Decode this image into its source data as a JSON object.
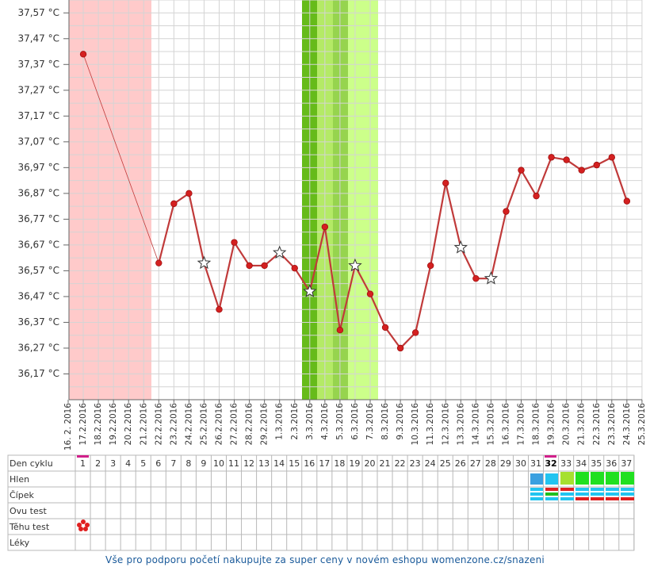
{
  "chart_data": {
    "type": "line",
    "x": [
      "16. 2. 2016",
      "17.2.2016",
      "18.2.2016",
      "19.2.2016",
      "20.2.2016",
      "21.2.2016",
      "22.2.2016",
      "23.2.2016",
      "24.2.2016",
      "25.2.2016",
      "26.2.2016",
      "27.2.2016",
      "28.2.2016",
      "29.2.2016",
      "1.3.2016",
      "2.3.2016",
      "3.3.2016",
      "4.3.2016",
      "5.3.2016",
      "6.3.2016",
      "7.3.2016",
      "8.3.2016",
      "9.3.2016",
      "10.3.2016",
      "11.3.2016",
      "12.3.2016",
      "13.3.2016",
      "14.3.2016",
      "15.3.2016",
      "16.3.2016",
      "17.3.2016",
      "18.3.2016",
      "19.3.2016",
      "20.3.2016",
      "21.3.2016",
      "22.3.2016",
      "23.3.2016",
      "24.3.2016",
      "25.3.2016"
    ],
    "series": [
      {
        "color": "#c03a3a",
        "values": [
          null,
          37.41,
          null,
          null,
          null,
          null,
          36.6,
          36.83,
          36.87,
          36.6,
          36.42,
          36.68,
          36.59,
          36.59,
          36.64,
          36.58,
          36.49,
          36.74,
          36.34,
          36.59,
          36.48,
          36.35,
          36.27,
          36.33,
          36.59,
          36.91,
          36.66,
          36.54,
          36.54,
          36.8,
          36.96,
          36.86,
          37.01,
          37.0,
          36.96,
          36.98,
          37.01,
          36.84,
          null
        ],
        "markers": [
          null,
          "dot",
          null,
          null,
          null,
          null,
          "dot",
          "dot",
          "dot",
          "star",
          "dot",
          "dot",
          "dot",
          "dot",
          "star",
          "dot",
          "star",
          "dot",
          "dot",
          "star",
          "dot",
          "dot",
          "dot",
          "dot",
          "dot",
          "dot",
          "star",
          "dot",
          "star",
          "dot",
          "dot",
          "dot",
          "dot",
          "dot",
          "dot",
          "dot",
          "dot",
          "dot",
          null
        ]
      }
    ],
    "ylim": [
      36.07,
      37.62
    ],
    "yticks": [
      {
        "value": 37.57,
        "label": "37,57 °C"
      },
      {
        "value": 37.47,
        "label": "37,47 °C"
      },
      {
        "value": 37.37,
        "label": "37,37 °C"
      },
      {
        "value": 37.27,
        "label": "37,27 °C"
      },
      {
        "value": 37.17,
        "label": "37,17 °C"
      },
      {
        "value": 37.07,
        "label": "37,07 °C"
      },
      {
        "value": 36.97,
        "label": "36,97 °C"
      },
      {
        "value": 36.87,
        "label": "36,87 °C"
      },
      {
        "value": 36.77,
        "label": "36,77 °C"
      },
      {
        "value": 36.67,
        "label": "36,67 °C"
      },
      {
        "value": 36.57,
        "label": "36,57 °C"
      },
      {
        "value": 36.47,
        "label": "36,47 °C"
      },
      {
        "value": 36.37,
        "label": "36,37 °C"
      },
      {
        "value": 36.27,
        "label": "36,27 °C"
      },
      {
        "value": 36.17,
        "label": "36,17 °C"
      }
    ],
    "grid": true
  },
  "table": {
    "row_labels": [
      "Den cyklu",
      "Hlen",
      "Čípek",
      "Ovu test",
      "Těhu test",
      "Léky"
    ],
    "cycle_days": [
      1,
      2,
      3,
      4,
      5,
      6,
      7,
      8,
      9,
      10,
      11,
      12,
      13,
      14,
      15,
      16,
      17,
      18,
      19,
      20,
      21,
      22,
      23,
      24,
      25,
      26,
      27,
      28,
      29,
      30,
      31,
      32,
      33,
      34,
      35,
      36,
      37
    ]
  },
  "footer": "Vše pro podporu početí nakupujte za super ceny v novém eshopu womenzone.cz/snazeni"
}
